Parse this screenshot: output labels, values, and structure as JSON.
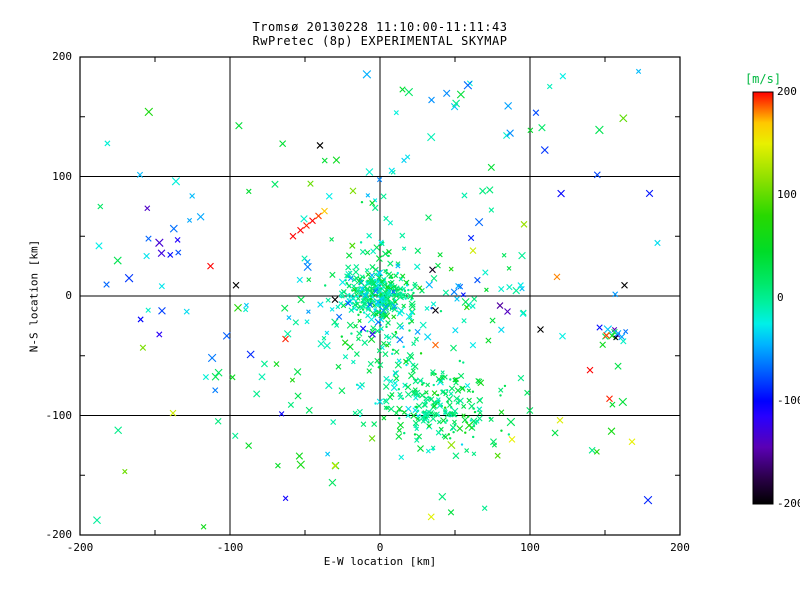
{
  "chart_data": {
    "type": "scatter",
    "title": "Tromsø 20130228 11:10:00-11:11:43",
    "subtitle": "RwPretec (8p) EXPERIMENTAL SKYMAP",
    "xlabel": "E-W location [km]",
    "ylabel": "N-S location [km]",
    "xlim": [
      -200,
      200
    ],
    "ylim": [
      -200,
      200
    ],
    "xticks": [
      -200,
      -100,
      0,
      100,
      200
    ],
    "yticks": [
      -200,
      -100,
      0,
      100,
      200
    ],
    "grid": true,
    "marker": "x",
    "background": "#ffffff",
    "axis_color": "#000000",
    "seed": 20130228,
    "colorbar": {
      "label": "[m/s]",
      "label_color": "#00b840",
      "min": -200,
      "max": 200,
      "ticks": [
        200,
        100,
        0,
        -100,
        -200
      ],
      "stops": [
        [
          -200,
          "#000000"
        ],
        [
          -175,
          "#2a0048"
        ],
        [
          -145,
          "#5a00b4"
        ],
        [
          -115,
          "#2800ff"
        ],
        [
          -100,
          "#0000ff"
        ],
        [
          -70,
          "#0064ff"
        ],
        [
          -45,
          "#00b4ff"
        ],
        [
          -25,
          "#00f0e8"
        ],
        [
          -5,
          "#00f0a0"
        ],
        [
          15,
          "#00e868"
        ],
        [
          45,
          "#00dc28"
        ],
        [
          80,
          "#28d800"
        ],
        [
          115,
          "#8ce000"
        ],
        [
          150,
          "#e8f000"
        ],
        [
          170,
          "#ffc800"
        ],
        [
          185,
          "#ff6400"
        ],
        [
          200,
          "#ff0000"
        ]
      ]
    },
    "clusters": [
      {
        "name": "core-dense",
        "cx": -2,
        "cy": 1,
        "sx": 11,
        "sy": 9,
        "n": 300,
        "v": 5,
        "vs": 22,
        "dot": 0.55,
        "size": 2.2
      },
      {
        "name": "core-halo",
        "cx": 0,
        "cy": -5,
        "sx": 30,
        "sy": 26,
        "n": 150,
        "v": 0,
        "vs": 30,
        "dot": 0.1,
        "size": 2.6
      },
      {
        "name": "north-trail",
        "cx": 0,
        "cy": 55,
        "sx": 10,
        "sy": 25,
        "n": 25,
        "v": 0,
        "vs": 30,
        "dot": 0.1,
        "size": 2.4
      },
      {
        "name": "east-of-core",
        "cx": 80,
        "cy": 5,
        "sx": 25,
        "sy": 20,
        "n": 18,
        "v": -10,
        "vs": 40,
        "dot": 0,
        "size": 2.8
      },
      {
        "name": "south-blob",
        "cx": 38,
        "cy": -92,
        "sx": 24,
        "sy": 16,
        "n": 210,
        "v": 12,
        "vs": 20,
        "dot": 0.25,
        "size": 2.4
      },
      {
        "name": "bridge",
        "cx": 15,
        "cy": -46,
        "sx": 12,
        "sy": 16,
        "n": 45,
        "v": 8,
        "vs": 25,
        "dot": 0.2,
        "size": 2.4
      },
      {
        "name": "east-clump",
        "cx": 158,
        "cy": -31,
        "sx": 7,
        "sy": 4,
        "n": 13,
        "v": -30,
        "vs": 80,
        "dot": 0,
        "size": 3
      },
      {
        "name": "west-cyan",
        "cx": -148,
        "cy": 42,
        "sx": 9,
        "sy": 7,
        "n": 7,
        "v": -70,
        "vs": 35,
        "dot": 0,
        "size": 3
      },
      {
        "name": "west-mid",
        "cx": -152,
        "cy": -8,
        "sx": 10,
        "sy": 10,
        "n": 6,
        "v": -45,
        "vs": 40,
        "dot": 0,
        "size": 3
      },
      {
        "name": "north-band",
        "cx": 35,
        "cy": 168,
        "sx": 25,
        "sy": 13,
        "n": 12,
        "v": -25,
        "vs": 45,
        "dot": 0,
        "size": 3
      },
      {
        "name": "north-mid",
        "cx": 55,
        "cy": 115,
        "sx": 45,
        "sy": 28,
        "n": 13,
        "v": -5,
        "vs": 45,
        "dot": 0,
        "size": 3
      },
      {
        "name": "northwest",
        "cx": -65,
        "cy": 122,
        "sx": 28,
        "sy": 18,
        "n": 6,
        "v": 5,
        "vs": 35,
        "dot": 0,
        "size": 3
      },
      {
        "name": "west-sparse",
        "cx": -85,
        "cy": -60,
        "sx": 45,
        "sy": 32,
        "n": 16,
        "v": 0,
        "vs": 45,
        "dot": 0,
        "size": 3
      },
      {
        "name": "southeast-sparse",
        "cx": 85,
        "cy": -138,
        "sx": 45,
        "sy": 26,
        "n": 13,
        "v": 35,
        "vs": 55,
        "dot": 0,
        "size": 3
      },
      {
        "name": "south-sparse",
        "cx": -35,
        "cy": -135,
        "sx": 38,
        "sy": 26,
        "n": 9,
        "v": 15,
        "vs": 40,
        "dot": 0,
        "size": 3
      },
      {
        "name": "field",
        "uniform": true,
        "n": 60,
        "v": 0,
        "vs": 55,
        "dot": 0,
        "size": 3
      }
    ],
    "notable_points": [
      {
        "x": -58,
        "y": 50,
        "v": 200
      },
      {
        "x": -53,
        "y": 55,
        "v": 200
      },
      {
        "x": -49,
        "y": 59,
        "v": 195
      },
      {
        "x": -45,
        "y": 63,
        "v": 200
      },
      {
        "x": -41,
        "y": 67,
        "v": 190
      },
      {
        "x": -37,
        "y": 71,
        "v": 170
      },
      {
        "x": -113,
        "y": 25,
        "v": 200
      },
      {
        "x": -63,
        "y": -36,
        "v": 195
      },
      {
        "x": 37,
        "y": -41,
        "v": 185
      },
      {
        "x": 140,
        "y": -62,
        "v": 200
      },
      {
        "x": 153,
        "y": -86,
        "v": 195
      },
      {
        "x": 118,
        "y": 16,
        "v": 180
      },
      {
        "x": 151,
        "y": -33,
        "v": 190
      },
      {
        "x": -40,
        "y": 126,
        "v": -200
      },
      {
        "x": -96,
        "y": 9,
        "v": -200
      },
      {
        "x": 163,
        "y": 9,
        "v": -200
      },
      {
        "x": 107,
        "y": -28,
        "v": -200
      },
      {
        "x": -30,
        "y": -3,
        "v": -200
      },
      {
        "x": 37,
        "y": -12,
        "v": -195
      },
      {
        "x": 35,
        "y": 22,
        "v": -190
      },
      {
        "x": 80,
        "y": -8,
        "v": -150
      },
      {
        "x": 85,
        "y": -13,
        "v": -140
      },
      {
        "x": -5,
        "y": -32,
        "v": -120
      },
      {
        "x": 120,
        "y": -104,
        "v": 145
      },
      {
        "x": 88,
        "y": -120,
        "v": 150
      },
      {
        "x": -30,
        "y": -142,
        "v": 135
      },
      {
        "x": 62,
        "y": 38,
        "v": 140
      },
      {
        "x": 168,
        "y": -122,
        "v": 150
      },
      {
        "x": -138,
        "y": -98,
        "v": 140
      },
      {
        "x": 96,
        "y": 60,
        "v": 120
      },
      {
        "x": -18,
        "y": 88,
        "v": 110
      }
    ]
  }
}
